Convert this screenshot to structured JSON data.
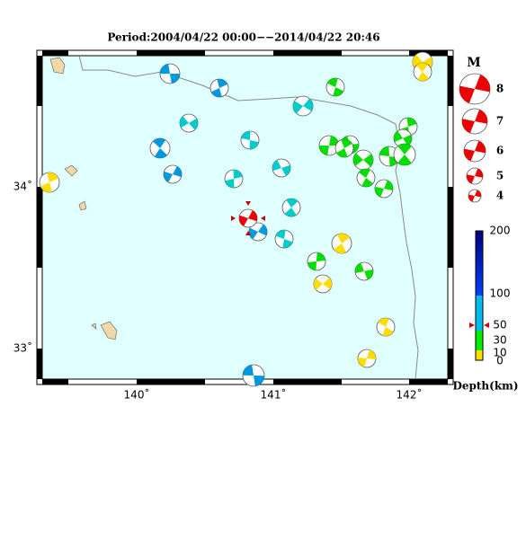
{
  "title": "Period:2004/04/22 00:00−−2014/04/22 20:46",
  "map": {
    "lon_labels": [
      "140˚",
      "141˚",
      "142˚"
    ],
    "lat_labels": [
      "34˚",
      "33˚"
    ]
  },
  "magnitude_legend": {
    "title": "M",
    "labels": [
      "8",
      "7",
      "6",
      "5",
      "4"
    ]
  },
  "depth_scale": {
    "labels": [
      "200",
      "100",
      "50",
      "30",
      "10",
      "0"
    ],
    "title": "Depth(km)"
  }
}
